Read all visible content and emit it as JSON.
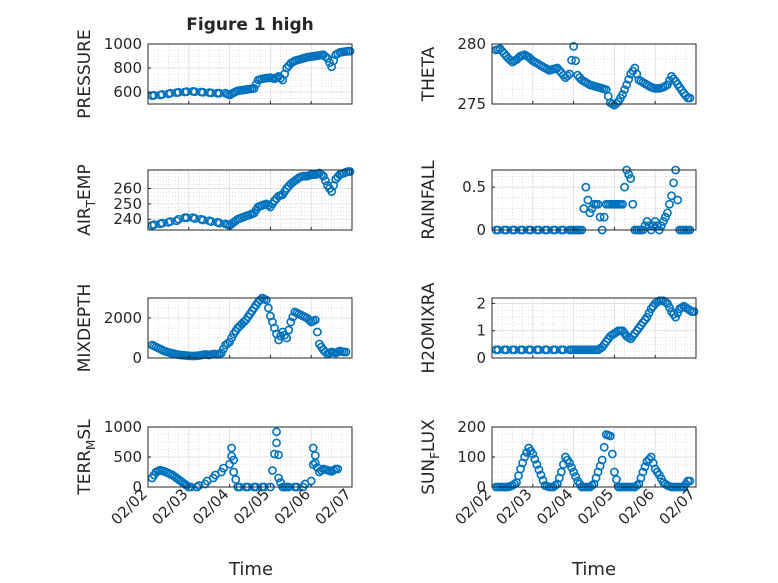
{
  "figure": {
    "title": "Figure 1 high",
    "marker_color": "#0072BD",
    "x_axis_label": "Time",
    "x_ticks": [
      "02/02",
      "02/03",
      "02/04",
      "02/05",
      "02/06",
      "02/07"
    ]
  },
  "chart_data": [
    {
      "type": "scatter",
      "title": "Figure 1 high",
      "ylabel": "PRESSURE",
      "ylim": [
        500,
        1000
      ],
      "yticks": [
        600,
        800,
        1000
      ],
      "xlim": [
        0,
        5
      ],
      "grid": true,
      "series": [
        {
          "x": [
            0.1,
            0.3,
            0.5,
            0.7,
            0.9,
            1.1,
            1.3,
            1.5,
            1.7,
            1.9,
            2.0,
            2.1,
            2.2,
            2.3,
            2.4,
            2.5,
            2.6,
            2.7,
            2.8,
            2.9,
            3.0,
            3.1,
            3.2,
            3.3,
            3.4,
            3.5,
            3.6,
            3.7,
            3.8,
            3.9,
            4.0,
            4.1,
            4.2,
            4.3,
            4.4,
            4.5,
            4.6,
            4.7,
            4.8,
            4.9
          ],
          "y": [
            570,
            575,
            585,
            595,
            600,
            605,
            600,
            595,
            590,
            590,
            575,
            595,
            610,
            615,
            620,
            625,
            630,
            700,
            710,
            715,
            720,
            710,
            730,
            700,
            800,
            840,
            860,
            870,
            880,
            890,
            895,
            900,
            905,
            910,
            880,
            810,
            910,
            930,
            935,
            940
          ]
        }
      ]
    },
    {
      "type": "scatter",
      "ylabel": "THETA",
      "ylim": [
        275,
        280
      ],
      "yticks": [
        275,
        280
      ],
      "xlim": [
        0,
        5
      ],
      "grid": true,
      "series": [
        {
          "x": [
            0.1,
            0.2,
            0.3,
            0.4,
            0.5,
            0.6,
            0.7,
            0.8,
            0.9,
            1.0,
            1.1,
            1.2,
            1.3,
            1.4,
            1.5,
            1.6,
            1.7,
            1.8,
            1.9,
            2.0,
            2.1,
            2.2,
            2.3,
            2.4,
            2.5,
            2.6,
            2.7,
            2.8,
            2.9,
            3.0,
            3.1,
            3.2,
            3.3,
            3.4,
            3.5,
            3.6,
            3.7,
            3.8,
            3.9,
            4.0,
            4.1,
            4.2,
            4.3,
            4.4,
            4.5,
            4.6,
            4.7,
            4.8
          ],
          "y": [
            279.5,
            279.6,
            279.2,
            278.8,
            278.5,
            278.7,
            279.0,
            279.1,
            278.9,
            278.6,
            278.4,
            278.2,
            278.0,
            277.8,
            277.9,
            278.0,
            277.6,
            277.2,
            277.5,
            279.8,
            277.4,
            277.0,
            276.8,
            276.6,
            276.5,
            276.4,
            276.3,
            276.2,
            275.1,
            274.9,
            275.2,
            275.8,
            276.6,
            277.5,
            278.0,
            277.0,
            276.8,
            276.6,
            276.4,
            276.3,
            276.3,
            276.4,
            276.6,
            277.3,
            276.9,
            276.4,
            275.9,
            275.5
          ]
        }
      ]
    },
    {
      "type": "scatter",
      "ylabel": "AIR_TEMP",
      "ylim": [
        233,
        272
      ],
      "yticks": [
        240,
        250,
        260
      ],
      "xlim": [
        0,
        5
      ],
      "grid": true,
      "series": [
        {
          "x": [
            0.1,
            0.3,
            0.5,
            0.7,
            0.9,
            1.1,
            1.3,
            1.5,
            1.7,
            1.9,
            2.0,
            2.1,
            2.2,
            2.3,
            2.4,
            2.5,
            2.6,
            2.7,
            2.8,
            2.9,
            3.0,
            3.1,
            3.2,
            3.3,
            3.4,
            3.5,
            3.6,
            3.7,
            3.8,
            3.9,
            4.0,
            4.1,
            4.2,
            4.3,
            4.4,
            4.5,
            4.6,
            4.7,
            4.8,
            4.9
          ],
          "y": [
            236,
            237,
            238,
            239,
            241,
            241,
            240,
            239,
            238,
            237,
            236,
            238,
            240,
            241,
            242,
            243,
            244,
            248,
            249,
            250,
            248,
            252,
            255,
            256,
            260,
            263,
            265,
            267,
            268,
            268,
            269,
            269,
            270,
            268,
            262,
            258,
            266,
            269,
            270,
            271
          ]
        }
      ]
    },
    {
      "type": "scatter",
      "ylabel": "RAINFALL",
      "ylim": [
        0,
        0.7
      ],
      "yticks": [
        0,
        0.5
      ],
      "xlim": [
        0,
        5
      ],
      "grid": true,
      "series": [
        {
          "x": [
            0.1,
            0.3,
            0.5,
            0.7,
            0.9,
            1.1,
            1.3,
            1.5,
            1.7,
            1.9,
            2.0,
            2.1,
            2.2,
            2.3,
            2.4,
            2.5,
            2.6,
            2.7,
            2.8,
            2.9,
            3.0,
            3.1,
            3.2,
            3.3,
            3.4,
            3.5,
            3.6,
            3.7,
            3.8,
            3.9,
            4.0,
            4.1,
            4.2,
            4.3,
            4.4,
            4.5,
            4.6,
            4.7,
            4.8
          ],
          "y": [
            0,
            0,
            0,
            0,
            0,
            0,
            0,
            0,
            0,
            0,
            0,
            0,
            0,
            0.5,
            0.2,
            0.3,
            0.3,
            0,
            0.3,
            0.3,
            0.3,
            0.3,
            0.3,
            0.7,
            0.6,
            0,
            0,
            0,
            0.1,
            0,
            0.1,
            0,
            0.1,
            0.2,
            0.4,
            0.7,
            0,
            0,
            0
          ]
        }
      ]
    },
    {
      "type": "scatter",
      "ylabel": "MIXDEPTH",
      "ylim": [
        0,
        3000
      ],
      "yticks": [
        0,
        2000
      ],
      "xlim": [
        0,
        5
      ],
      "grid": true,
      "series": [
        {
          "x": [
            0.1,
            0.2,
            0.3,
            0.4,
            0.5,
            0.6,
            0.7,
            0.8,
            0.9,
            1.0,
            1.1,
            1.2,
            1.3,
            1.4,
            1.5,
            1.6,
            1.7,
            1.8,
            1.9,
            2.0,
            2.1,
            2.2,
            2.3,
            2.4,
            2.5,
            2.6,
            2.7,
            2.8,
            2.9,
            3.0,
            3.1,
            3.2,
            3.3,
            3.4,
            3.5,
            3.6,
            3.7,
            3.8,
            3.9,
            4.0,
            4.1,
            4.2,
            4.3,
            4.4,
            4.5,
            4.6,
            4.7,
            4.8
          ],
          "y": [
            650,
            550,
            450,
            350,
            280,
            230,
            180,
            150,
            130,
            110,
            100,
            110,
            140,
            180,
            150,
            200,
            180,
            250,
            650,
            800,
            1200,
            1500,
            1700,
            1900,
            2200,
            2500,
            2800,
            3000,
            2900,
            2100,
            1500,
            900,
            1300,
            1000,
            1800,
            2300,
            2200,
            2100,
            2000,
            1800,
            1900,
            700,
            400,
            200,
            300,
            250,
            350,
            300
          ]
        }
      ]
    },
    {
      "type": "scatter",
      "ylabel": "H2OMIXRA",
      "ylim": [
        0,
        2.2
      ],
      "yticks": [
        0,
        1,
        2
      ],
      "xlim": [
        0,
        5
      ],
      "grid": true,
      "series": [
        {
          "x": [
            0.1,
            0.3,
            0.5,
            0.7,
            0.9,
            1.1,
            1.3,
            1.5,
            1.7,
            1.9,
            2.0,
            2.1,
            2.2,
            2.3,
            2.4,
            2.5,
            2.6,
            2.7,
            2.8,
            2.9,
            3.0,
            3.1,
            3.2,
            3.3,
            3.4,
            3.5,
            3.6,
            3.7,
            3.8,
            3.9,
            4.0,
            4.1,
            4.2,
            4.3,
            4.4,
            4.5,
            4.6,
            4.7,
            4.8,
            4.9
          ],
          "y": [
            0.3,
            0.3,
            0.3,
            0.3,
            0.3,
            0.3,
            0.3,
            0.3,
            0.3,
            0.3,
            0.3,
            0.3,
            0.3,
            0.3,
            0.3,
            0.3,
            0.3,
            0.4,
            0.6,
            0.8,
            0.9,
            1.0,
            1.0,
            0.8,
            0.7,
            0.9,
            1.1,
            1.3,
            1.5,
            1.8,
            2.0,
            2.1,
            2.1,
            2.0,
            1.7,
            1.5,
            1.8,
            1.9,
            1.8,
            1.7
          ]
        }
      ]
    },
    {
      "type": "scatter",
      "ylabel": "TERR_MSL",
      "ylim": [
        0,
        1000
      ],
      "yticks": [
        0,
        500,
        1000
      ],
      "xlim": [
        0,
        5
      ],
      "grid": true,
      "series": [
        {
          "x": [
            0.1,
            0.2,
            0.3,
            0.4,
            0.5,
            0.6,
            0.7,
            0.8,
            0.9,
            1.0,
            1.2,
            1.4,
            1.6,
            1.8,
            2.0,
            2.05,
            2.1,
            2.2,
            2.4,
            2.6,
            2.8,
            3.0,
            3.1,
            3.15,
            3.2,
            3.3,
            3.4,
            3.6,
            3.8,
            4.0,
            4.05,
            4.1,
            4.2,
            4.3,
            4.4,
            4.5,
            4.6
          ],
          "y": [
            150,
            250,
            280,
            260,
            230,
            200,
            150,
            100,
            50,
            0,
            0,
            50,
            150,
            250,
            380,
            650,
            250,
            0,
            0,
            0,
            0,
            0,
            550,
            920,
            150,
            0,
            0,
            0,
            0,
            100,
            650,
            400,
            250,
            300,
            280,
            260,
            300
          ]
        }
      ]
    },
    {
      "type": "scatter",
      "ylabel": "SUN_FLUX",
      "ylim": [
        0,
        200
      ],
      "yticks": [
        0,
        100,
        200
      ],
      "xlim": [
        0,
        5
      ],
      "grid": true,
      "series": [
        {
          "x": [
            0.1,
            0.2,
            0.3,
            0.4,
            0.5,
            0.6,
            0.7,
            0.8,
            0.9,
            1.0,
            1.1,
            1.2,
            1.3,
            1.4,
            1.5,
            1.6,
            1.7,
            1.8,
            1.9,
            2.0,
            2.1,
            2.2,
            2.3,
            2.4,
            2.5,
            2.6,
            2.7,
            2.8,
            2.9,
            3.0,
            3.1,
            3.2,
            3.3,
            3.4,
            3.5,
            3.6,
            3.7,
            3.8,
            3.9,
            4.0,
            4.1,
            4.2,
            4.3,
            4.4,
            4.5,
            4.6,
            4.7,
            4.8
          ],
          "y": [
            0,
            0,
            0,
            0,
            5,
            15,
            60,
            100,
            130,
            110,
            75,
            40,
            5,
            0,
            0,
            10,
            50,
            100,
            80,
            50,
            20,
            0,
            0,
            0,
            10,
            50,
            90,
            175,
            170,
            50,
            0,
            0,
            0,
            0,
            0,
            10,
            50,
            85,
            100,
            60,
            40,
            15,
            5,
            0,
            0,
            0,
            0,
            20
          ]
        }
      ]
    }
  ]
}
